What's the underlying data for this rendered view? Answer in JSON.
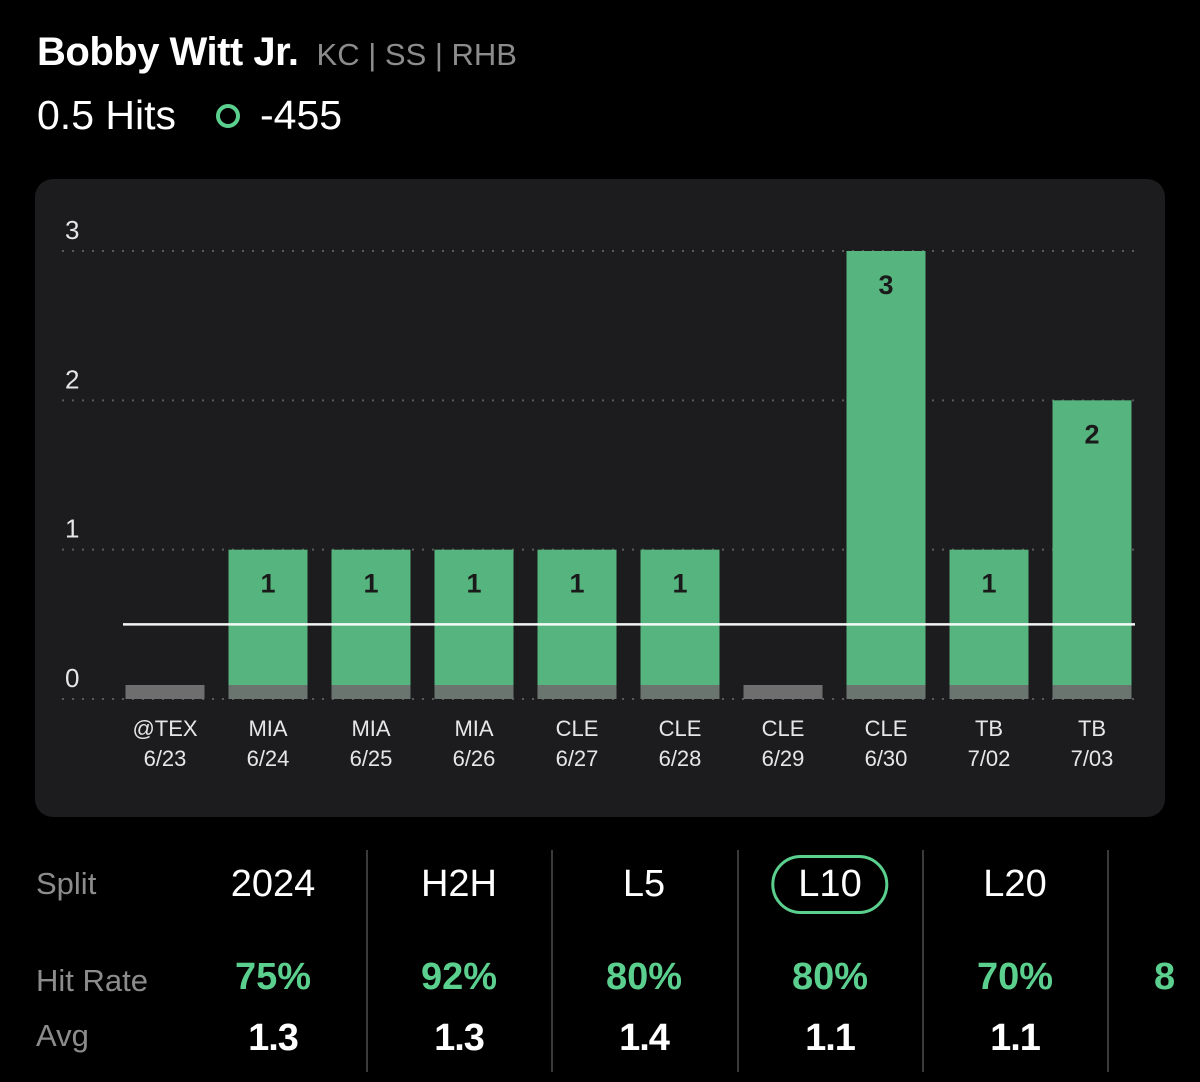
{
  "player": {
    "name": "Bobby Witt Jr.",
    "meta": "KC | SS | RHB"
  },
  "line": {
    "label": "0.5 Hits",
    "odds": "-455",
    "value": 0.5
  },
  "colors": {
    "accent": "#5bd08e",
    "bar": "#56b57f",
    "zero_bar": "#6e6e6e",
    "card": "#1c1c1e"
  },
  "chart_data": {
    "type": "bar",
    "categories": [
      "@TEX",
      "MIA",
      "MIA",
      "MIA",
      "CLE",
      "CLE",
      "CLE",
      "CLE",
      "TB",
      "TB"
    ],
    "dates": [
      "6/23",
      "6/24",
      "6/25",
      "6/26",
      "6/27",
      "6/28",
      "6/29",
      "6/30",
      "7/02",
      "7/03"
    ],
    "values": [
      0,
      1,
      1,
      1,
      1,
      1,
      0,
      3,
      1,
      2
    ],
    "value_labels": [
      "",
      "1",
      "1",
      "1",
      "1",
      "1",
      "",
      "3",
      "1",
      "2"
    ],
    "yticks": [
      "0",
      "1",
      "2",
      "3"
    ],
    "ylim": [
      0,
      3
    ],
    "line_value": 0.5,
    "grid": true
  },
  "splits": {
    "row_labels": {
      "split": "Split",
      "hit_rate": "Hit Rate",
      "avg": "Avg"
    },
    "columns": [
      {
        "tab": "2024",
        "hit_rate": "75%",
        "avg": "1.3",
        "selected": false
      },
      {
        "tab": "H2H",
        "hit_rate": "92%",
        "avg": "1.3",
        "selected": false
      },
      {
        "tab": "L5",
        "hit_rate": "80%",
        "avg": "1.4",
        "selected": false
      },
      {
        "tab": "L10",
        "hit_rate": "80%",
        "avg": "1.1",
        "selected": true
      },
      {
        "tab": "L20",
        "hit_rate": "70%",
        "avg": "1.1",
        "selected": false
      }
    ],
    "clipped_rate": "8"
  }
}
